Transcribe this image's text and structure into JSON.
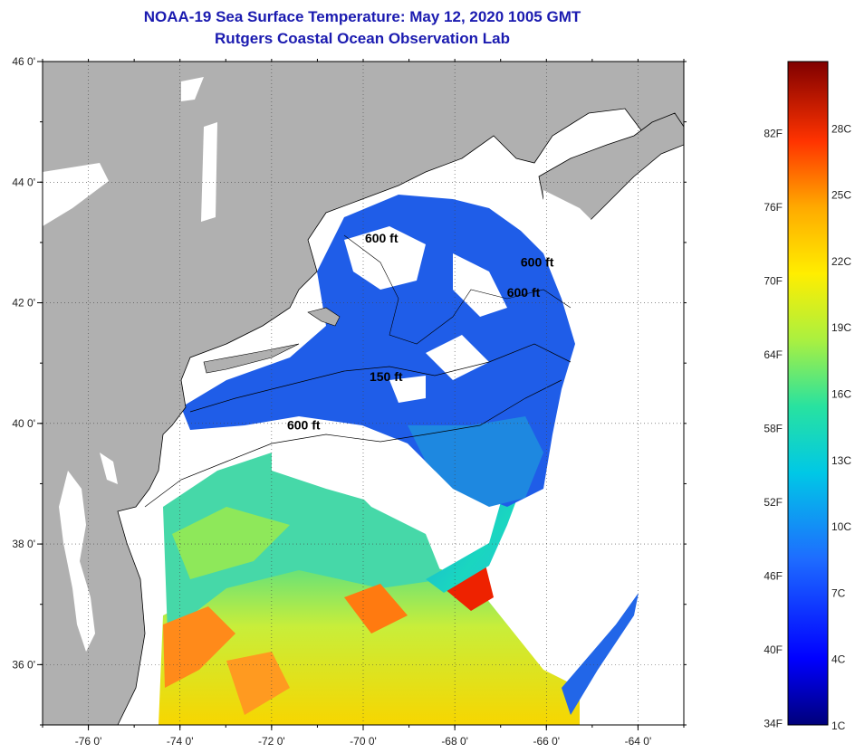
{
  "title": "NOAA-19 Sea Surface Temperature:  May 12, 2020 1005 GMT",
  "subtitle": "Rutgers Coastal Ocean Observation Lab",
  "map": {
    "lon_range": [
      -77,
      -63
    ],
    "lat_range": [
      35,
      46
    ],
    "lat_ticks": [
      {
        "value": 46,
        "label": "46 0'"
      },
      {
        "value": 44,
        "label": "44 0'"
      },
      {
        "value": 42,
        "label": "42 0'"
      },
      {
        "value": 40,
        "label": "40 0'"
      },
      {
        "value": 38,
        "label": "38 0'"
      },
      {
        "value": 36,
        "label": "36 0'"
      }
    ],
    "lon_ticks": [
      {
        "value": -76,
        "label": "-76 0'"
      },
      {
        "value": -74,
        "label": "-74 0'"
      },
      {
        "value": -72,
        "label": "-72 0'"
      },
      {
        "value": -70,
        "label": "-70 0'"
      },
      {
        "value": -68,
        "label": "-68 0'"
      },
      {
        "value": -66,
        "label": "-66 0'"
      },
      {
        "value": -64,
        "label": "-64 0'"
      }
    ],
    "contour_labels": [
      {
        "text": "600 ft",
        "lon": -69.6,
        "lat": 43.0
      },
      {
        "text": "600 ft",
        "lon": -66.2,
        "lat": 42.6
      },
      {
        "text": "600 ft",
        "lon": -66.5,
        "lat": 42.1
      },
      {
        "text": "150 ft",
        "lon": -69.5,
        "lat": 40.7
      },
      {
        "text": "600 ft",
        "lon": -71.3,
        "lat": 39.9
      }
    ],
    "colors": {
      "land": "#b0b0b0",
      "cloud": "#ffffff",
      "coast": "#000000"
    }
  },
  "colorbar": {
    "fahrenheit_labels": [
      "82F",
      "76F",
      "70F",
      "64F",
      "58F",
      "52F",
      "46F",
      "40F",
      "34F"
    ],
    "celsius_labels": [
      "28C",
      "25C",
      "22C",
      "19C",
      "16C",
      "13C",
      "10C",
      "7C",
      "4C",
      "1C"
    ],
    "min_c": 1,
    "max_c": 31
  }
}
